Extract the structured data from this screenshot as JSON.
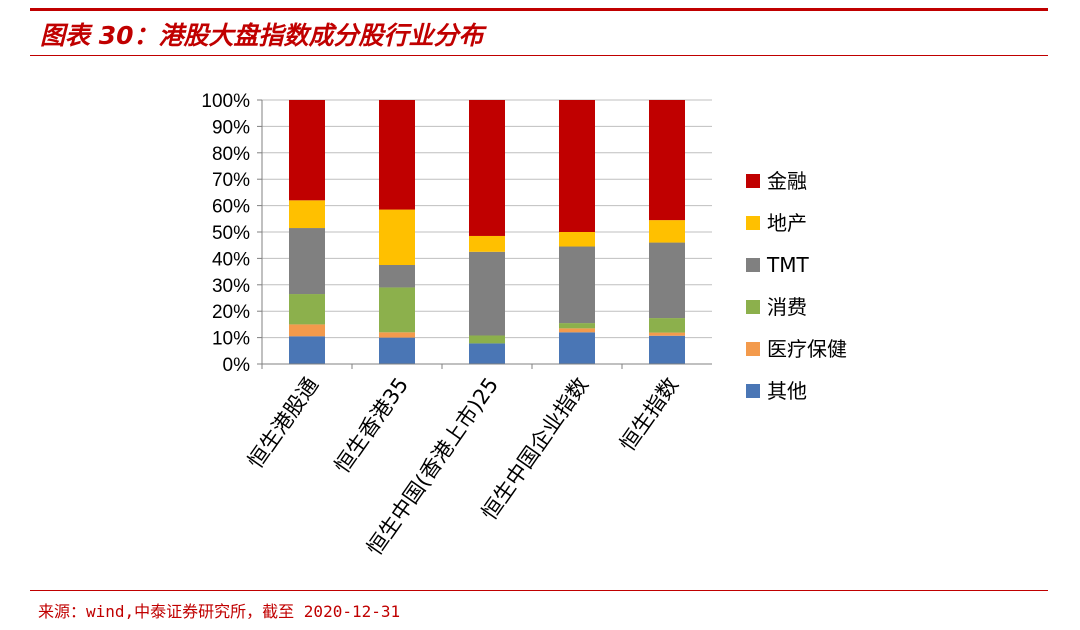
{
  "header": {
    "title": "图表 30：港股大盘指数成分股行业分布"
  },
  "footer": {
    "source": "来源：wind,中泰证券研究所，截至 2020-12-31"
  },
  "colors": {
    "accent": "#c00000",
    "金融": "#c00000",
    "地产": "#ffc000",
    "TMT": "#808080",
    "消费": "#8cb04c",
    "医疗保健": "#f39a4c",
    "其他": "#4a76b5"
  },
  "chart_data": {
    "type": "bar",
    "stacked": true,
    "percent": true,
    "categories": [
      "恒生港股通",
      "恒生香港35",
      "恒生中国(香港上市)25",
      "恒生中国企业指数",
      "恒生指数"
    ],
    "yticks": [
      "0%",
      "10%",
      "20%",
      "30%",
      "40%",
      "50%",
      "60%",
      "70%",
      "80%",
      "90%",
      "100%"
    ],
    "ylim": [
      0,
      100
    ],
    "grid": true,
    "legend": "right",
    "series": [
      {
        "name": "其他",
        "color": "#4a76b5",
        "values": [
          10.5,
          10,
          7.8,
          12,
          10.7
        ]
      },
      {
        "name": "医疗保健",
        "color": "#f39a4c",
        "values": [
          4.5,
          2,
          0,
          1.5,
          1.2
        ]
      },
      {
        "name": "消费",
        "color": "#8cb04c",
        "values": [
          11.5,
          17,
          3,
          2,
          5.5
        ]
      },
      {
        "name": "TMT",
        "color": "#808080",
        "values": [
          25,
          8.5,
          31.7,
          29,
          28.6
        ]
      },
      {
        "name": "地产",
        "color": "#ffc000",
        "values": [
          10.5,
          21,
          6,
          5.5,
          8.5
        ]
      },
      {
        "name": "金融",
        "color": "#c00000",
        "values": [
          38,
          41.5,
          51.5,
          50,
          45.5
        ]
      }
    ],
    "legend_order": [
      "金融",
      "地产",
      "TMT",
      "消费",
      "医疗保健",
      "其他"
    ]
  }
}
